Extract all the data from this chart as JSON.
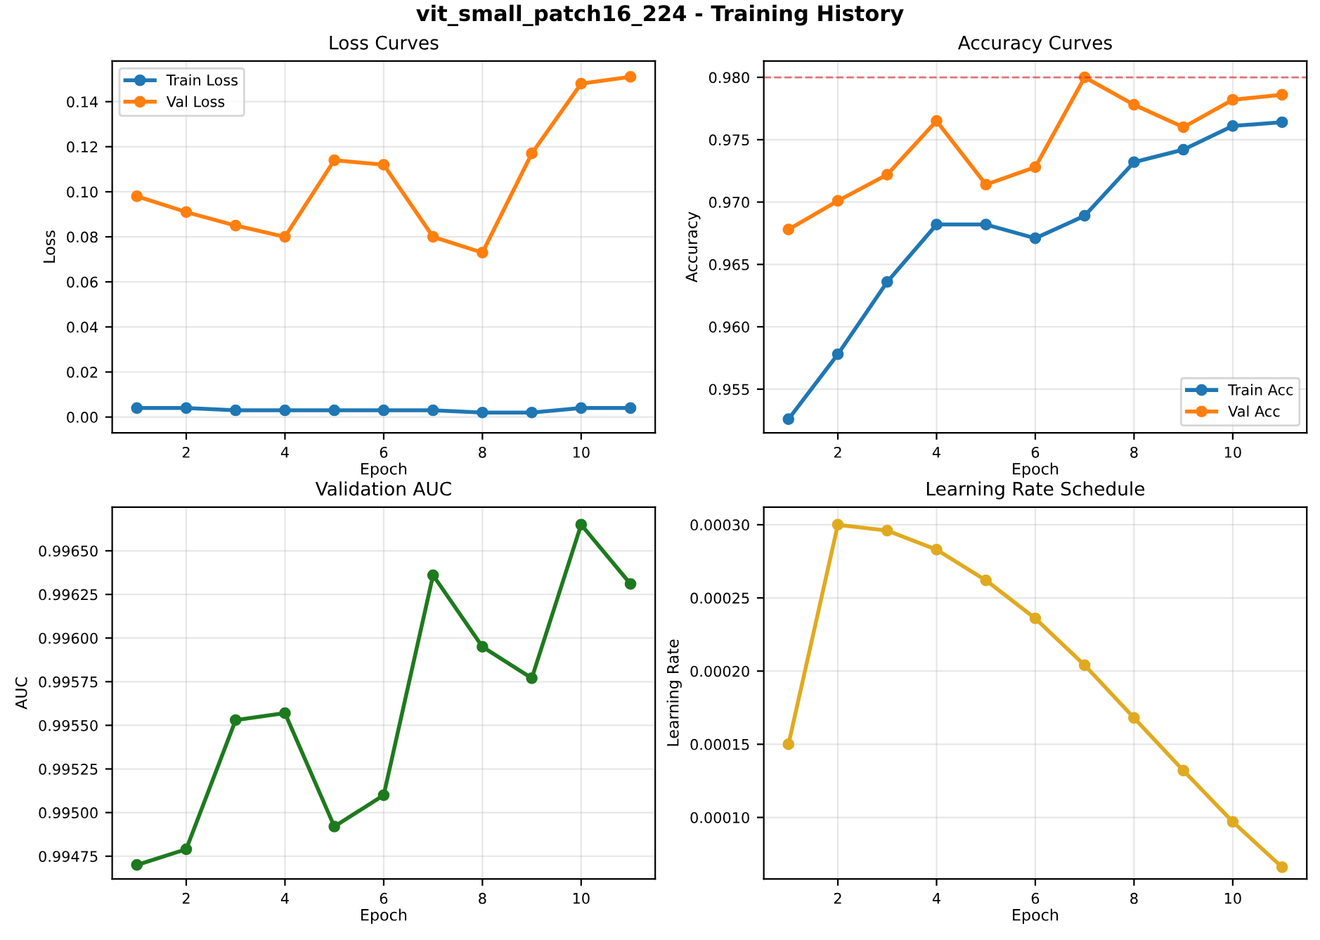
{
  "chart_data": [
    {
      "type": "line",
      "annotations": [
        "vit_small_patch16_224 - Training History"
      ],
      "title": "Loss Curves",
      "xlabel": "Epoch",
      "ylabel": "Loss",
      "x": [
        1,
        2,
        3,
        4,
        5,
        6,
        7,
        8,
        9,
        10,
        11
      ],
      "xlim": [
        0.5,
        11.5
      ],
      "xticks": [
        2,
        4,
        6,
        8,
        10
      ],
      "ylim": [
        -0.007,
        0.158
      ],
      "yticks": [
        {
          "value": 0,
          "label": "0.00"
        },
        0.02,
        0.04,
        0.06,
        0.08,
        {
          "value": 0.1,
          "label": "0.10"
        },
        0.12,
        0.14
      ],
      "grid": true,
      "legend": "top left",
      "marker": "circle",
      "series": [
        {
          "name": "Train Loss",
          "color": "#1f77b4",
          "values": [
            0.004,
            0.004,
            0.003,
            0.003,
            0.003,
            0.003,
            0.003,
            0.002,
            0.002,
            0.004,
            0.004
          ]
        },
        {
          "name": "Val Loss",
          "color": "#ff7f0e",
          "values": [
            0.098,
            0.091,
            0.085,
            0.08,
            0.114,
            0.112,
            0.08,
            0.073,
            0.117,
            0.148,
            0.151
          ]
        }
      ]
    },
    {
      "type": "line",
      "title": "Accuracy Curves",
      "xlabel": "Epoch",
      "ylabel": "Accuracy",
      "x": [
        1,
        2,
        3,
        4,
        5,
        6,
        7,
        8,
        9,
        10,
        11
      ],
      "xlim": [
        0.5,
        11.5
      ],
      "xticks": [
        2,
        4,
        6,
        8,
        10
      ],
      "ylim": [
        0.9515,
        0.9813
      ],
      "yticks": [
        0.955,
        {
          "value": 0.96,
          "label": "0.960"
        },
        0.965,
        {
          "value": 0.97,
          "label": "0.970"
        },
        0.975,
        {
          "value": 0.98,
          "label": "0.980"
        }
      ],
      "grid": true,
      "legend": "bottom right",
      "marker": "circle",
      "ref_lines": [
        {
          "axis": "y",
          "value": 0.98,
          "color": "#d62728",
          "line_style": "dashed"
        }
      ],
      "series": [
        {
          "name": "Train Acc",
          "color": "#1f77b4",
          "values": [
            0.9526,
            0.9578,
            0.9636,
            0.9682,
            0.9682,
            0.9671,
            0.9689,
            0.9732,
            0.9742,
            0.9761,
            0.9764
          ]
        },
        {
          "name": "Val Acc",
          "color": "#ff7f0e",
          "values": [
            0.9678,
            0.9701,
            0.9722,
            0.9765,
            0.9714,
            0.9728,
            0.98,
            0.9778,
            0.976,
            0.9782,
            0.9786
          ]
        }
      ]
    },
    {
      "type": "line",
      "title": "Validation AUC",
      "xlabel": "Epoch",
      "ylabel": "AUC",
      "x": [
        1,
        2,
        3,
        4,
        5,
        6,
        7,
        8,
        9,
        10,
        11
      ],
      "xlim": [
        0.5,
        11.5
      ],
      "xticks": [
        2,
        4,
        6,
        8,
        10
      ],
      "ylim": [
        0.99462,
        0.99675
      ],
      "yticks": [
        0.99475,
        {
          "value": 0.995,
          "label": "0.99500"
        },
        0.99525,
        {
          "value": 0.9955,
          "label": "0.99550"
        },
        0.99575,
        {
          "value": 0.996,
          "label": "0.99600"
        },
        0.99625,
        {
          "value": 0.9965,
          "label": "0.99650"
        }
      ],
      "grid": true,
      "marker": "circle",
      "series": [
        {
          "color": "#1e7a1e",
          "values": [
            0.9947,
            0.99479,
            0.99553,
            0.99557,
            0.99492,
            0.9951,
            0.99636,
            0.99595,
            0.99577,
            0.99665,
            0.99631
          ]
        }
      ]
    },
    {
      "type": "line",
      "title": "Learning Rate Schedule",
      "xlabel": "Epoch",
      "ylabel": "Learning Rate",
      "x": [
        1,
        2,
        3,
        4,
        5,
        6,
        7,
        8,
        9,
        10,
        11
      ],
      "xlim": [
        0.5,
        11.5
      ],
      "xticks": [
        2,
        4,
        6,
        8,
        10
      ],
      "ylim": [
        5.8e-05,
        0.000312
      ],
      "yticks": [
        {
          "value": 0.0001,
          "label": "0.00010"
        },
        {
          "value": 0.00015,
          "label": "0.00015"
        },
        {
          "value": 0.0002,
          "label": "0.00020"
        },
        {
          "value": 0.00025,
          "label": "0.00025"
        },
        {
          "value": 0.0003,
          "label": "0.00030"
        }
      ],
      "grid": true,
      "marker": "circle",
      "series": [
        {
          "color": "#e0aa20",
          "values": [
            0.00015,
            0.0003,
            0.000296,
            0.000283,
            0.000262,
            0.000236,
            0.000204,
            0.000168,
            0.000132,
            9.7e-05,
            6.6e-05
          ]
        }
      ]
    }
  ]
}
